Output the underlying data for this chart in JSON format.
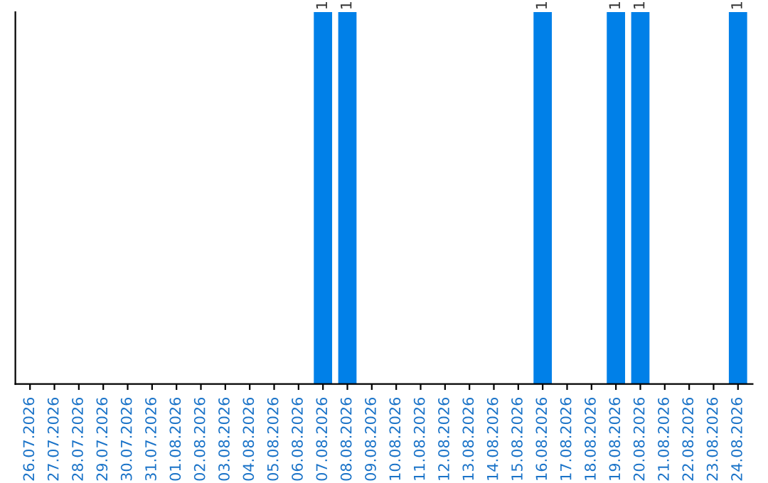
{
  "chart_data": {
    "type": "bar",
    "categories": [
      "26.07.2026",
      "27.07.2026",
      "28.07.2026",
      "29.07.2026",
      "30.07.2026",
      "31.07.2026",
      "01.08.2026",
      "02.08.2026",
      "03.08.2026",
      "04.08.2026",
      "05.08.2026",
      "06.08.2026",
      "07.08.2026",
      "08.08.2026",
      "09.08.2026",
      "10.08.2026",
      "11.08.2026",
      "12.08.2026",
      "13.08.2026",
      "14.08.2026",
      "15.08.2026",
      "16.08.2026",
      "17.08.2026",
      "18.08.2026",
      "19.08.2026",
      "20.08.2026",
      "21.08.2026",
      "22.08.2026",
      "23.08.2026",
      "24.08.2026"
    ],
    "values": [
      null,
      null,
      null,
      null,
      null,
      null,
      null,
      null,
      null,
      null,
      null,
      null,
      1,
      1,
      null,
      null,
      null,
      null,
      null,
      null,
      null,
      1,
      null,
      null,
      1,
      1,
      null,
      null,
      null,
      1
    ],
    "data_labels": true,
    "color": "#0080e8"
  }
}
